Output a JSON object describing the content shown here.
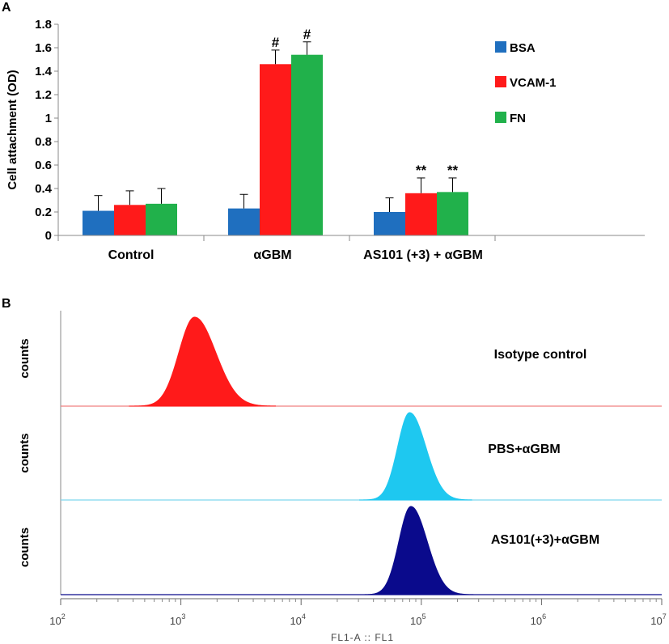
{
  "chart_data": [
    {
      "panel": "A",
      "type": "bar",
      "ylabel": "Cell attachment (OD)",
      "ylim": [
        0,
        1.8
      ],
      "yticks": [
        "0",
        "0.2",
        "0.4",
        "0.6",
        "0.8",
        "1",
        "1.2",
        "1.4",
        "1.6",
        "1.8"
      ],
      "categories": [
        "Control",
        "αGBM",
        "AS101 (+3) + αGBM"
      ],
      "series": [
        {
          "name": "BSA",
          "color": "#1f6fbf",
          "values": [
            0.21,
            0.23,
            0.2
          ],
          "errors": [
            0.13,
            0.12,
            0.12
          ],
          "annotations": [
            "",
            "",
            ""
          ]
        },
        {
          "name": "VCAM-1",
          "color": "#ff1a1a",
          "values": [
            0.26,
            1.46,
            0.36
          ],
          "errors": [
            0.12,
            0.12,
            0.13
          ],
          "annotations": [
            "",
            "#",
            "**"
          ]
        },
        {
          "name": "FN",
          "color": "#21b14b",
          "values": [
            0.27,
            1.54,
            0.37
          ],
          "errors": [
            0.13,
            0.11,
            0.12
          ],
          "annotations": [
            "",
            "#",
            "**"
          ]
        }
      ]
    },
    {
      "panel": "B",
      "type": "area",
      "xlabel": "FL1-A :: FL1",
      "x_scale": "log",
      "xlim": [
        100,
        10000000
      ],
      "x_ticks": [
        {
          "base": "10",
          "exp": "2",
          "value": 100
        },
        {
          "base": "10",
          "exp": "3",
          "value": 1000
        },
        {
          "base": "10",
          "exp": "4",
          "value": 10000
        },
        {
          "base": "10",
          "exp": "5",
          "value": 100000
        },
        {
          "base": "10",
          "exp": "6",
          "value": 1000000
        },
        {
          "base": "10",
          "exp": "7",
          "value": 10000000
        }
      ],
      "ylabel": "counts",
      "histograms": [
        {
          "name": "Isotype control",
          "color": "#ff1a1a",
          "line_color": "#f08080",
          "peak": 1300,
          "log_sd": 0.13
        },
        {
          "name": "PBS+αGBM",
          "color": "#1ec8f0",
          "line_color": "#7fd6ee",
          "peak": 80000,
          "log_sd": 0.1
        },
        {
          "name": "AS101(+3)+αGBM",
          "color": "#0a0a8c",
          "line_color": "#0a0a8c",
          "peak": 82000,
          "log_sd": 0.1
        }
      ]
    }
  ]
}
